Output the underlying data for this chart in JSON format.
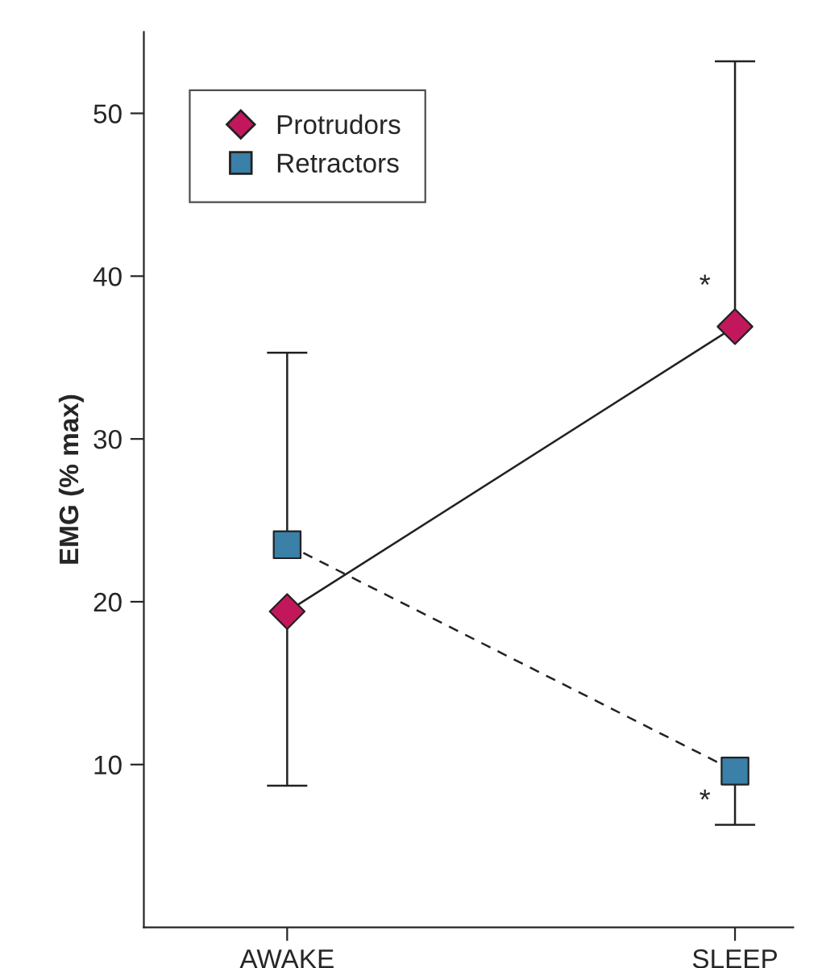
{
  "chart_data": {
    "type": "line",
    "ylabel": "EMG (% max)",
    "categories": [
      "AWAKE",
      "SLEEP"
    ],
    "series": [
      {
        "name": "Protrudors",
        "color": "#c2185b",
        "values": [
          19.4,
          36.9
        ],
        "errors": [
          [
            8.7,
            19.4
          ],
          [
            36.9,
            53.2
          ]
        ],
        "marker": "diamond",
        "line_style": "solid"
      },
      {
        "name": "Retractors",
        "color": "#3a80a8",
        "values": [
          23.5,
          9.6
        ],
        "errors": [
          [
            23.5,
            35.3
          ],
          [
            6.3,
            9.6
          ]
        ],
        "marker": "square",
        "line_style": "dashed"
      }
    ],
    "annotations": [
      "*",
      "*"
    ],
    "ylim": [
      0,
      55
    ],
    "yticks": [
      10,
      20,
      30,
      40,
      50
    ],
    "grid": false,
    "legend": "top left"
  }
}
